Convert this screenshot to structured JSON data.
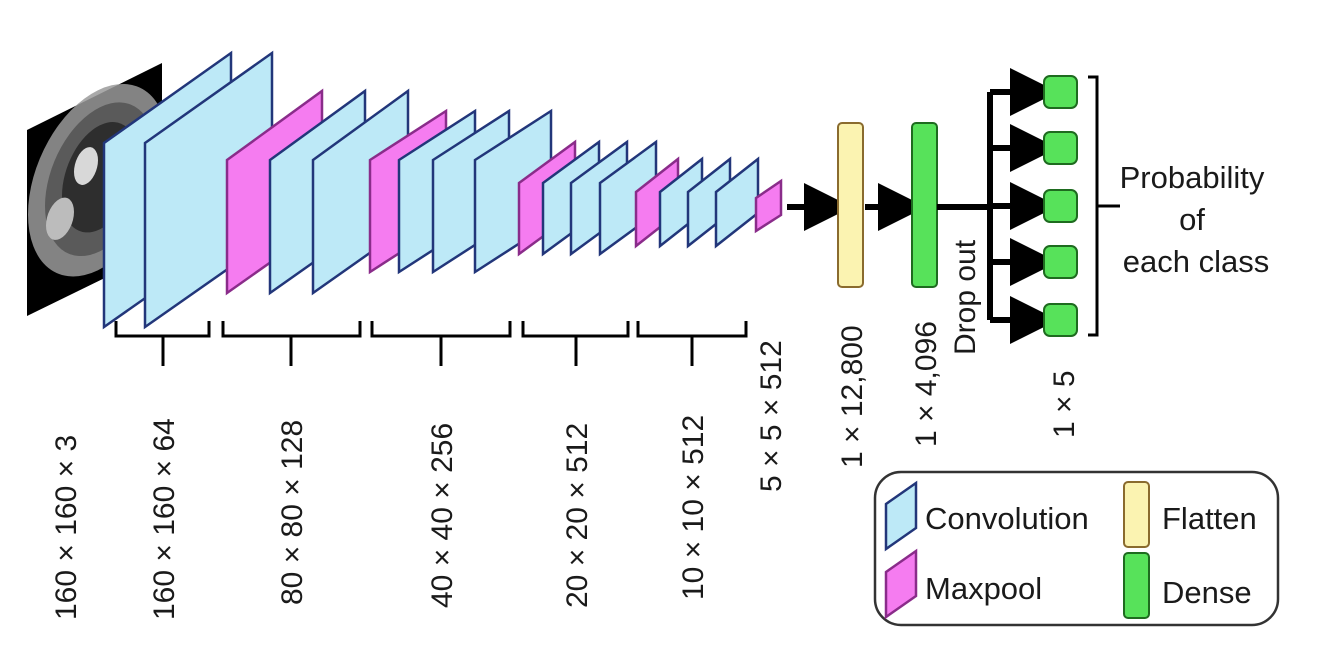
{
  "colors": {
    "convolution": "#bde9f7",
    "maxpool": "#f57cf0",
    "flatten": "#fbf3b1",
    "dense": "#57e25a",
    "stroke_blue": "#22367a",
    "stroke_magenta": "#8a2c8a"
  },
  "input": {
    "image": "brain-mri-slice",
    "dim": "160 × 160 × 3"
  },
  "stage_dims": [
    "160 × 160 × 64",
    "80 × 80 × 128",
    "40 × 40 × 256",
    "20 × 20 × 512",
    "10 × 10 × 512"
  ],
  "final_pool_dim": "5 × 5 × 512",
  "flatten_dim": "1 × 12,800",
  "dense_dim": "1 × 4,096",
  "dropout_label": "Drop out",
  "output_dim": "1 × 5",
  "output_nodes": 5,
  "probability_label": [
    "Probability",
    "of",
    "each class"
  ],
  "legend": {
    "convolution": "Convolution",
    "maxpool": "Maxpool",
    "flatten": "Flatten",
    "dense": "Dense"
  }
}
